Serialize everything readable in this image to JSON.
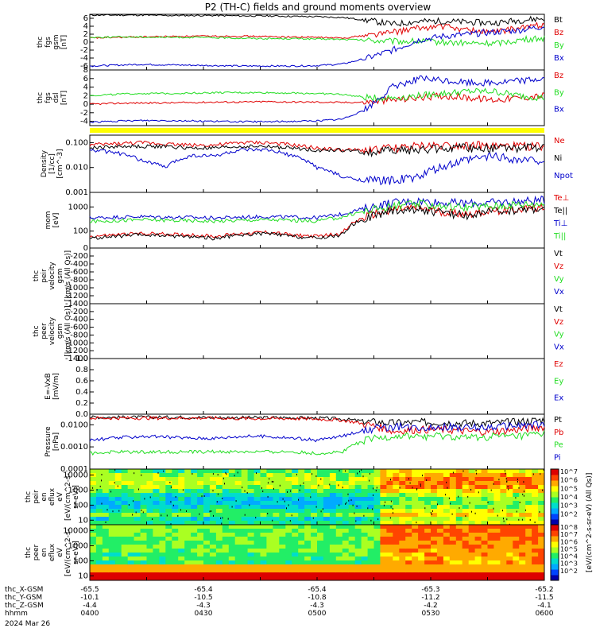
{
  "title": "P2 (TH-C) fields and ground moments overview",
  "colors": {
    "black": "#000000",
    "red": "#e00000",
    "green": "#22dd22",
    "blue": "#0000cc",
    "yellow": "#ffff00"
  },
  "chart_data": [
    {
      "type": "line",
      "id": "fgs",
      "ylabel": [
        "thc",
        "fgs",
        "gsm",
        "[nT]"
      ],
      "yticks": [
        "6",
        "4",
        "2",
        "0",
        "-2",
        "-4",
        "-6"
      ],
      "ylim": [
        -7,
        7
      ],
      "series": [
        {
          "name": "Bt",
          "color": "#000000",
          "values": [
            6.8,
            6.8,
            6.8,
            6.7,
            6.7,
            6.7,
            6.6,
            6.6,
            6.5,
            6.4,
            6.2,
            5.5,
            4.5,
            5.2,
            5.3,
            5.0,
            4.8,
            5.5,
            6.0
          ]
        },
        {
          "name": "Bz",
          "color": "#e00000",
          "values": [
            1.0,
            1.2,
            1.3,
            1.4,
            1.5,
            1.5,
            1.5,
            1.4,
            1.3,
            1.2,
            1.0,
            1.8,
            2.5,
            3.5,
            4.0,
            3.0,
            2.5,
            3.5,
            4.5
          ]
        },
        {
          "name": "By",
          "color": "#22dd22",
          "values": [
            1.2,
            1.3,
            1.3,
            1.2,
            1.2,
            1.1,
            1.0,
            0.9,
            0.9,
            0.8,
            0.7,
            0.5,
            0.2,
            0.2,
            0.0,
            -0.3,
            -0.3,
            0.5,
            1.0
          ]
        },
        {
          "name": "Bx",
          "color": "#0000cc",
          "values": [
            -6.0,
            -5.8,
            -5.6,
            -5.7,
            -5.8,
            -5.9,
            -6.0,
            -6.0,
            -6.0,
            -5.9,
            -5.5,
            -4.0,
            -2.0,
            0.5,
            1.5,
            2.0,
            2.5,
            3.0,
            4.0
          ]
        }
      ]
    },
    {
      "type": "line",
      "id": "fgs-dsl",
      "ylabel": [
        "thc",
        "fgs",
        "dsl",
        "[nT]"
      ],
      "yticks": [
        "8",
        "6",
        "4",
        "2",
        "0",
        "-2",
        "-4"
      ],
      "ylim": [
        -5,
        8
      ],
      "series": [
        {
          "name": "Bz",
          "color": "#e00000",
          "values": [
            0.0,
            0.2,
            0.3,
            0.3,
            0.4,
            0.5,
            0.5,
            0.6,
            0.5,
            0.5,
            0.4,
            0.5,
            1.0,
            1.5,
            2.0,
            1.5,
            1.0,
            1.5,
            2.0
          ]
        },
        {
          "name": "By",
          "color": "#22dd22",
          "values": [
            2.0,
            2.3,
            2.5,
            2.5,
            2.6,
            2.7,
            2.7,
            2.7,
            2.6,
            2.5,
            2.3,
            1.5,
            1.5,
            2.0,
            2.5,
            3.0,
            3.0,
            2.0,
            1.5
          ]
        },
        {
          "name": "Bx",
          "color": "#0000cc",
          "values": [
            -4.2,
            -4.0,
            -3.8,
            -3.8,
            -3.9,
            -4.0,
            -4.1,
            -4.1,
            -4.0,
            -3.9,
            -3.5,
            -1.0,
            4.0,
            6.0,
            5.5,
            5.0,
            5.0,
            5.5,
            6.0
          ]
        }
      ]
    },
    {
      "type": "line",
      "id": "density",
      "scale": "log",
      "ylabel": [
        "Density",
        "[1/cc]",
        "[cm^-3]"
      ],
      "yticks": [
        "0.100",
        "0.010",
        "0.001"
      ],
      "ylim": [
        0.001,
        0.2
      ],
      "series": [
        {
          "name": "Ne",
          "color": "#e00000",
          "values": [
            0.08,
            0.09,
            0.1,
            0.09,
            0.08,
            0.08,
            0.1,
            0.1,
            0.08,
            0.06,
            0.05,
            0.05,
            0.06,
            0.07,
            0.08,
            0.08,
            0.07,
            0.07,
            0.07
          ]
        },
        {
          "name": "Ni",
          "color": "#000000",
          "values": [
            0.06,
            0.07,
            0.07,
            0.07,
            0.06,
            0.06,
            0.07,
            0.07,
            0.06,
            0.05,
            0.05,
            0.04,
            0.05,
            0.05,
            0.06,
            0.06,
            0.06,
            0.06,
            0.06
          ]
        },
        {
          "name": "Npot",
          "color": "#0000cc",
          "values": [
            0.05,
            0.04,
            0.02,
            0.01,
            0.03,
            0.03,
            0.05,
            0.05,
            0.03,
            0.01,
            0.004,
            0.003,
            0.003,
            0.004,
            0.01,
            0.02,
            0.03,
            0.02,
            0.02
          ]
        }
      ]
    },
    {
      "type": "line",
      "id": "temperature",
      "scale": "log",
      "ylabel": [
        "mom",
        "[eV]"
      ],
      "yticks": [
        "1000",
        "100"
      ],
      "ylim": [
        20,
        4000
      ],
      "series": [
        {
          "name": "Te⊥",
          "color": "#e00000",
          "values": [
            60,
            70,
            80,
            75,
            70,
            60,
            80,
            90,
            70,
            60,
            80,
            400,
            800,
            900,
            600,
            500,
            700,
            800,
            1000
          ]
        },
        {
          "name": "Te||",
          "color": "#000000",
          "values": [
            50,
            60,
            70,
            65,
            60,
            50,
            70,
            80,
            60,
            50,
            70,
            350,
            700,
            800,
            550,
            450,
            650,
            750,
            900
          ]
        },
        {
          "name": "Ti⊥",
          "color": "#0000cc",
          "values": [
            350,
            380,
            400,
            380,
            370,
            350,
            380,
            400,
            380,
            360,
            500,
            900,
            1500,
            1800,
            1500,
            1400,
            1500,
            1700,
            1900
          ]
        },
        {
          "name": "Ti||",
          "color": "#22dd22",
          "values": [
            250,
            270,
            300,
            280,
            270,
            260,
            280,
            300,
            280,
            260,
            380,
            700,
            1100,
            1300,
            1100,
            1000,
            1100,
            1300,
            1400
          ]
        }
      ]
    },
    {
      "type": "line",
      "id": "peir-velocity",
      "ylabel": [
        "thc",
        "peir",
        "velocity",
        "gsm",
        "[km/s (All Qs)]"
      ],
      "yticks": [
        "0",
        "-200",
        "-400",
        "-600",
        "-800",
        "-1000",
        "-1200",
        "-1400"
      ],
      "ylim": [
        -1400,
        0
      ],
      "series": [
        {
          "name": "Vt",
          "color": "#000000",
          "values": []
        },
        {
          "name": "Vz",
          "color": "#e00000",
          "values": []
        },
        {
          "name": "Vy",
          "color": "#22dd22",
          "values": []
        },
        {
          "name": "Vx",
          "color": "#0000cc",
          "values": []
        }
      ]
    },
    {
      "type": "line",
      "id": "peer-velocity",
      "ylabel": [
        "thc",
        "peer",
        "velocity",
        "gsm",
        "[km/s (All Qs)]"
      ],
      "yticks": [
        "-200",
        "-400",
        "-600",
        "-800",
        "-1000",
        "-1200",
        "-1400"
      ],
      "ylim": [
        -1400,
        0
      ],
      "series": [
        {
          "name": "Vt",
          "color": "#000000",
          "values": []
        },
        {
          "name": "Vz",
          "color": "#e00000",
          "values": []
        },
        {
          "name": "Vy",
          "color": "#22dd22",
          "values": []
        },
        {
          "name": "Vx",
          "color": "#0000cc",
          "values": []
        }
      ]
    },
    {
      "type": "line",
      "id": "efield",
      "ylabel": [
        "E=-VxB",
        "[mV/m]"
      ],
      "yticks": [
        "1.0",
        "0.8",
        "0.6",
        "0.4",
        "0.2",
        "0.0"
      ],
      "ylim": [
        0,
        1
      ],
      "series": [
        {
          "name": "Ez",
          "color": "#e00000",
          "values": []
        },
        {
          "name": "Ey",
          "color": "#22dd22",
          "values": []
        },
        {
          "name": "Ex",
          "color": "#0000cc",
          "values": []
        }
      ]
    },
    {
      "type": "line",
      "id": "pressure",
      "scale": "log",
      "ylabel": [
        "Pressure",
        "[nPa]"
      ],
      "yticks": [
        "0.0100",
        "0.0010",
        "0.0001"
      ],
      "ylim": [
        0.0001,
        0.03
      ],
      "series": [
        {
          "name": "Pt",
          "color": "#000000",
          "values": [
            0.022,
            0.022,
            0.022,
            0.022,
            0.022,
            0.021,
            0.021,
            0.021,
            0.021,
            0.02,
            0.018,
            0.014,
            0.012,
            0.013,
            0.013,
            0.012,
            0.012,
            0.014,
            0.017
          ]
        },
        {
          "name": "Pb",
          "color": "#e00000",
          "values": [
            0.02,
            0.02,
            0.02,
            0.02,
            0.02,
            0.02,
            0.019,
            0.019,
            0.019,
            0.018,
            0.016,
            0.01,
            0.005,
            0.006,
            0.006,
            0.005,
            0.005,
            0.006,
            0.008
          ]
        },
        {
          "name": "Pe",
          "color": "#22dd22",
          "values": [
            0.0005,
            0.0006,
            0.0006,
            0.0006,
            0.0006,
            0.0006,
            0.0006,
            0.0006,
            0.0006,
            0.0005,
            0.0006,
            0.002,
            0.003,
            0.003,
            0.003,
            0.0025,
            0.003,
            0.003,
            0.004
          ]
        },
        {
          "name": "Pi",
          "color": "#0000cc",
          "values": [
            0.002,
            0.0025,
            0.003,
            0.0028,
            0.0025,
            0.0025,
            0.003,
            0.003,
            0.0025,
            0.002,
            0.003,
            0.006,
            0.008,
            0.008,
            0.008,
            0.007,
            0.008,
            0.009,
            0.01
          ]
        }
      ]
    },
    {
      "type": "heatmap",
      "id": "peir-spectrogram",
      "scale": "log",
      "ylabel": [
        "thc",
        "peir",
        "en",
        "eflux",
        "eV",
        "[eV/(cm^2-s-",
        "sr-eV)]"
      ],
      "yticks": [
        "10000",
        "1000",
        "100",
        "10"
      ],
      "ylim": [
        5,
        25000
      ],
      "colorbar": {
        "label": "[eV/(cm^2-s-sr-eV) (All Qs)]",
        "ticks": [
          "10^7",
          "10^6",
          "10^5",
          "10^4",
          "10^3",
          "10^2"
        ]
      }
    },
    {
      "type": "heatmap",
      "id": "peer-spectrogram",
      "scale": "log",
      "ylabel": [
        "thc",
        "peer",
        "en",
        "eflux",
        "eV",
        "[eV/(cm^2-s-",
        "sr-eV)]"
      ],
      "yticks": [
        "10000",
        "1000",
        "100",
        "10"
      ],
      "ylim": [
        5,
        25000
      ],
      "colorbar": {
        "label": "[eV/(cm^2-s-sr-eV) (All Qs)]",
        "ticks": [
          "10^8",
          "10^7",
          "10^6",
          "10^5",
          "10^4",
          "10^3",
          "10^2"
        ]
      }
    }
  ],
  "xaxis": {
    "rows": [
      {
        "label": "thc_X-GSM",
        "ticks": [
          "-65.5",
          "-65.4",
          "-65.4",
          "-65.3",
          "-65.2"
        ]
      },
      {
        "label": "thc_Y-GSM",
        "ticks": [
          "-10.1",
          "-10.5",
          "-10.8",
          "-11.2",
          "-11.5"
        ]
      },
      {
        "label": "thc_Z-GSM",
        "ticks": [
          "-4.4",
          "-4.3",
          "-4.3",
          "-4.2",
          "-4.1"
        ]
      },
      {
        "label": "hhmm",
        "ticks": [
          "0400",
          "0430",
          "0500",
          "0530",
          "0600"
        ]
      }
    ],
    "date": "2024 Mar 26"
  }
}
